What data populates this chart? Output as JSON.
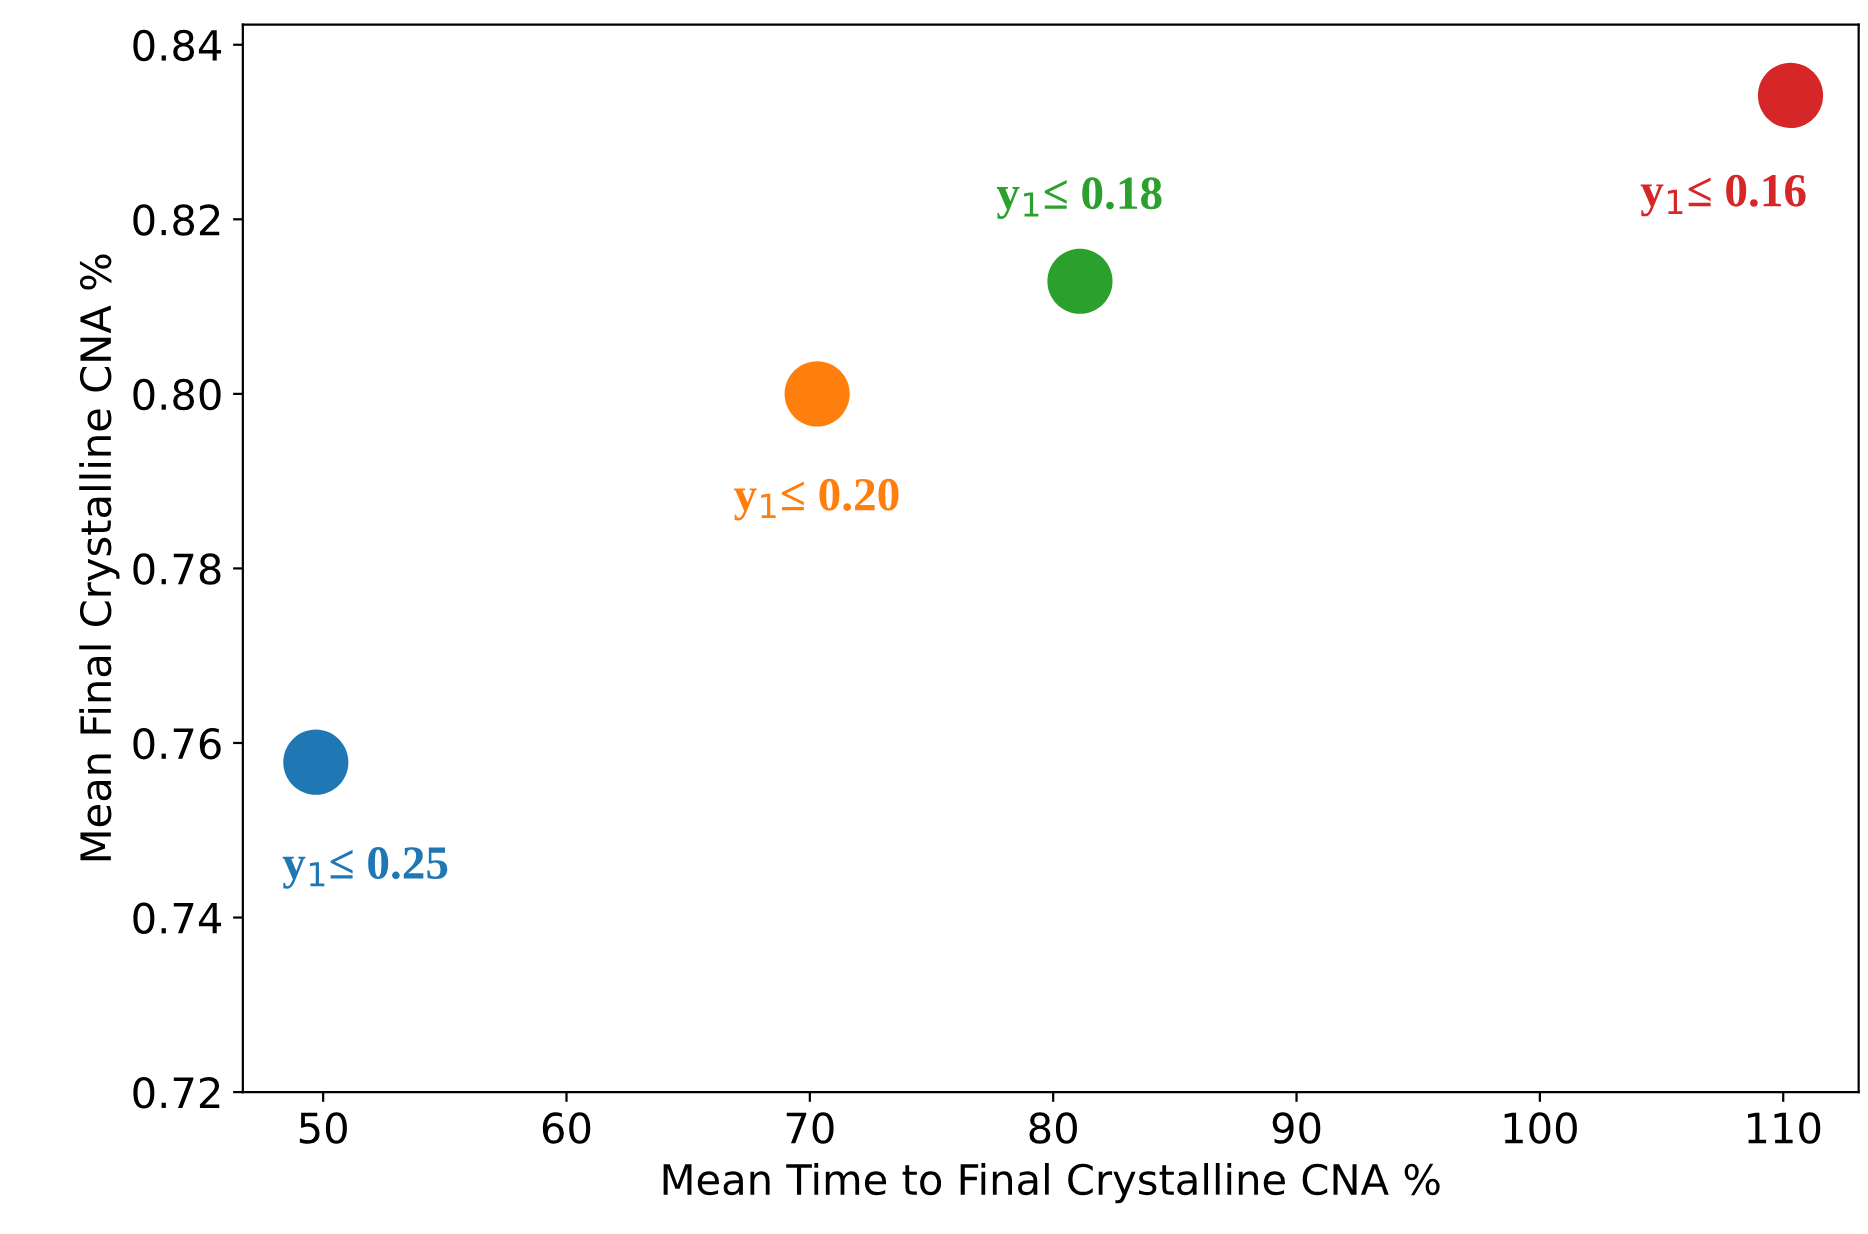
{
  "chart_data": {
    "type": "scatter",
    "xlabel": "Mean Time to Final Crystalline CNA %",
    "ylabel": "Mean Final Crystalline CNA %",
    "x": [
      49.7,
      70.3,
      81.1,
      110.3
    ],
    "values": [
      0.7578,
      0.8,
      0.8129,
      0.8342
    ],
    "colors": [
      "#1f77b4",
      "#ff7f0e",
      "#2ca02c",
      "#d62728"
    ],
    "marker": "circle",
    "annotations": [
      {
        "text": "y$_{1}$≤ 0.25",
        "x": 49.7,
        "y": 0.7578
      },
      {
        "text": "y$_{1}$≤ 0.20",
        "x": 70.3,
        "y": 0.8
      },
      {
        "text": "y$_{1}$≤ 0.18",
        "x": 81.1,
        "y": 0.8129
      },
      {
        "text": "y$_{1}$≤ 0.16",
        "x": 110.3,
        "y": 0.8342
      }
    ],
    "xlim": [
      46.7,
      113.1
    ],
    "ylim": [
      0.72,
      0.8423
    ],
    "xticks": [
      50,
      60,
      70,
      80,
      90,
      100,
      110
    ],
    "yticks": [
      {
        "value": 0.72,
        "label": "0.72"
      },
      {
        "value": 0.74,
        "label": "0.74"
      },
      {
        "value": 0.76,
        "label": "0.76"
      },
      {
        "value": 0.78,
        "label": "0.78"
      },
      {
        "value": 0.8,
        "label": "0.80"
      },
      {
        "value": 0.82,
        "label": "0.82"
      },
      {
        "value": 0.84,
        "label": "0.84"
      }
    ],
    "grid": false,
    "legend": false
  }
}
